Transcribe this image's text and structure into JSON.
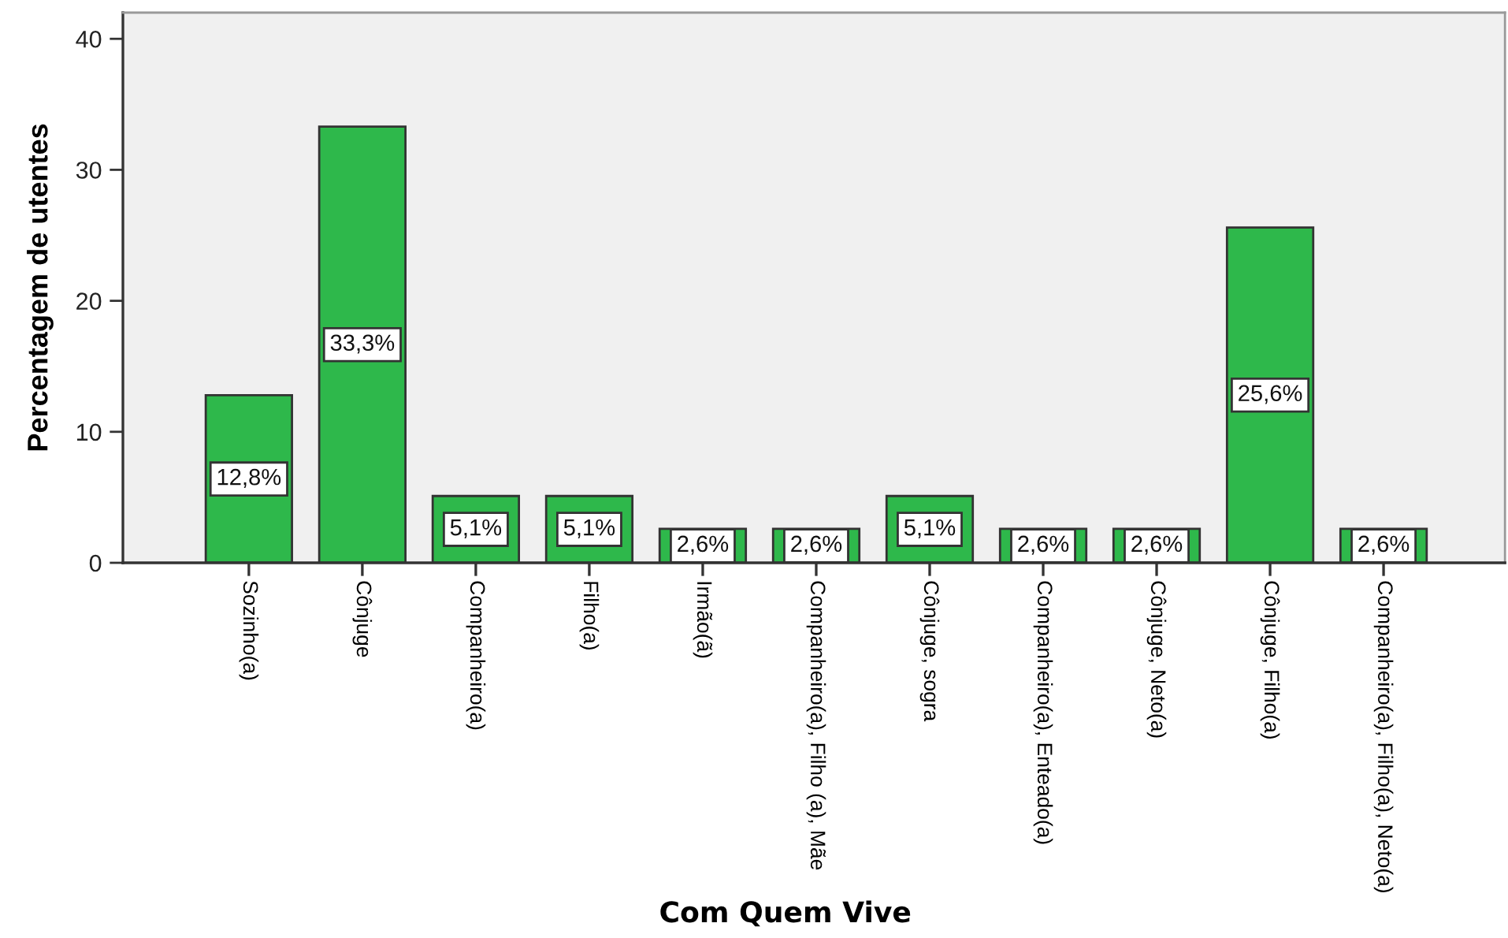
{
  "chart_data": {
    "type": "bar",
    "xlabel": "Com Quem Vive",
    "ylabel": "Percentagem de utentes",
    "categories": [
      "Sozinho(a)",
      "Cônjuge",
      "Companheiro(a)",
      "Filho(a)",
      "Irmão(ã)",
      "Companheiro(a), Filho (a), Mãe",
      "Cônjuge, sogra",
      "Companheiro(a), Enteado(a)",
      "Cônjuge, Neto(a)",
      "Cônjuge, Filho(a)",
      "Companheiro(a), Filho(a), Neto(a)"
    ],
    "values": [
      12.8,
      33.3,
      5.1,
      5.1,
      2.6,
      2.6,
      5.1,
      2.6,
      2.6,
      25.6,
      2.6
    ],
    "value_labels": [
      "12,8%",
      "33,3%",
      "5,1%",
      "5,1%",
      "2,6%",
      "2,6%",
      "5,1%",
      "2,6%",
      "2,6%",
      "25,6%",
      "2,6%"
    ],
    "color": "#2eb84b",
    "ylim": [
      0,
      42
    ],
    "yticks": [
      0,
      10,
      20,
      30,
      40
    ]
  }
}
